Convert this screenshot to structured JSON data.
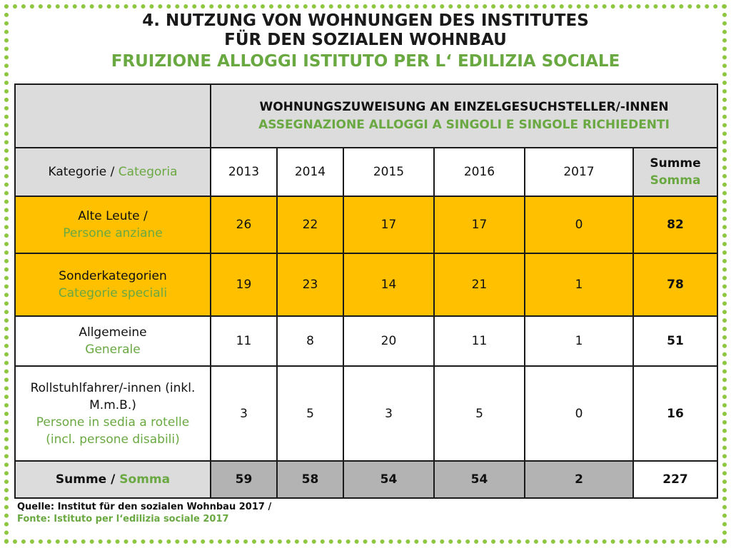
{
  "title": {
    "de_line1": "4. NUTZUNG VON WOHNUNGEN DES INSTITUTES",
    "de_line2": "FÜR DEN SOZIALEN WOHNBAU",
    "it": "FRUIZIONE ALLOGGI ISTITUTO PER L‘ EDILIZIA SOCIALE"
  },
  "table": {
    "group_header_de": "WOHNUNGSZUWEISUNG AN EINZELGESUCHSTELLER/-INNEN",
    "group_header_it": "ASSEGNAZIONE ALLOGGI A SINGOLI E SINGOLE RICHIEDENTI",
    "category_label_de": "Kategorie / ",
    "category_label_it": "Categoria",
    "years": [
      "2013",
      "2014",
      "2015",
      "2016",
      "2017"
    ],
    "sum_label_de": "Summe",
    "sum_label_it": "Somma",
    "rows": [
      {
        "label_de": "Alte Leute /",
        "label_it": "Persone anziane",
        "values": [
          "26",
          "22",
          "17",
          "17",
          "0"
        ],
        "sum": "82"
      },
      {
        "label_de": "Sonderkategorien",
        "label_it": "Categorie speciali",
        "values": [
          "19",
          "23",
          "14",
          "21",
          "1"
        ],
        "sum": "78"
      },
      {
        "label_de": "Allgemeine",
        "label_it": "Generale",
        "values": [
          "11",
          "8",
          "20",
          "11",
          "1"
        ],
        "sum": "51"
      },
      {
        "label_de": "Rollstuhlfahrer/-innen (inkl. M.m.B.)",
        "label_it": "Persone in sedia a rotelle (incl. persone disabili)",
        "values": [
          "3",
          "5",
          "3",
          "5",
          "0"
        ],
        "sum": "16"
      }
    ],
    "total": {
      "label_de": "Summe / ",
      "label_it": "Somma",
      "values": [
        "59",
        "58",
        "54",
        "54",
        "2"
      ],
      "grand": "227"
    }
  },
  "source": {
    "de": "Quelle: Institut für den sozialen Wohnbau 2017 /",
    "it": "Fonte: Istituto per l‘edilizia sociale 2017"
  },
  "colors": {
    "accent_green": "#6aa842",
    "frame_green": "#8dc63f",
    "highlight_orange": "#ffc000",
    "header_gray": "#dcdcdc",
    "total_gray": "#b3b3b3"
  }
}
